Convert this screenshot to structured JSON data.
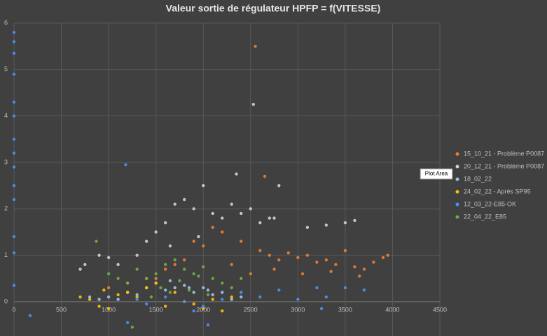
{
  "chart_data": {
    "type": "scatter",
    "title": "Valeur sortie de régulateur HPFP = f(VITESSE)",
    "tooltip": "Plot Area",
    "xlim": [
      0,
      4500
    ],
    "xticks": [
      0,
      500,
      1000,
      1500,
      2000,
      2500,
      3000,
      3500,
      4000,
      4500
    ],
    "ylim": [
      -0.7,
      6
    ],
    "yticks": [
      0,
      1,
      2,
      3,
      4,
      5,
      6
    ],
    "grid": true,
    "legend": "right",
    "series": [
      {
        "name": "15_10_21 - Problème P0087",
        "color": "#ed7d31",
        "x": [
          2550,
          2650,
          2400,
          2600,
          2700,
          2800,
          2900,
          3000,
          3100,
          3200,
          3300,
          3400,
          3500,
          3600,
          3700,
          3800,
          3900,
          3950,
          2200,
          2000,
          1800,
          1600,
          1400,
          1200,
          1000,
          2500,
          2750,
          3050,
          3350,
          3650,
          2300,
          2100,
          1900,
          1700,
          1500
        ],
        "values": [
          5.5,
          2.7,
          1.3,
          1.1,
          1.0,
          0.9,
          1.05,
          0.95,
          1.0,
          0.85,
          0.9,
          0.8,
          1.1,
          0.75,
          0.7,
          0.85,
          0.95,
          1.0,
          1.5,
          1.2,
          0.9,
          0.7,
          0.5,
          0.4,
          0.3,
          0.6,
          0.7,
          0.6,
          0.65,
          0.55,
          0.8,
          1.6,
          1.3,
          0.8,
          0.5
        ]
      },
      {
        "name": "20_12_21 - Problème P0087",
        "color": "#d0d0d0",
        "x": [
          2530,
          2350,
          2000,
          1700,
          1800,
          1900,
          2100,
          2200,
          2300,
          2400,
          2500,
          2600,
          2700,
          2800,
          1500,
          1600,
          1400,
          1300,
          1100,
          1000,
          900,
          700,
          750,
          2750,
          3100,
          3300,
          3500,
          3600,
          1650,
          1950
        ],
        "values": [
          4.25,
          2.75,
          2.5,
          2.1,
          2.2,
          2.0,
          1.9,
          1.8,
          2.1,
          1.9,
          2.0,
          1.7,
          1.8,
          2.5,
          1.5,
          1.7,
          1.3,
          1.0,
          0.8,
          0.95,
          1.0,
          0.7,
          0.8,
          1.8,
          1.6,
          1.65,
          1.7,
          1.75,
          1.2,
          1.4
        ]
      },
      {
        "name": "18_02_22",
        "color": "#9dc3e6",
        "x": [
          1000,
          1200,
          1400,
          1600,
          1800,
          2000,
          2200,
          2400,
          1100,
          1300,
          1500,
          1700,
          1900,
          2100,
          2300,
          900,
          800,
          1650,
          1850,
          2050
        ],
        "values": [
          0.1,
          0.2,
          0.3,
          0.25,
          0.35,
          0.3,
          0.2,
          0.1,
          0.05,
          0.15,
          0.4,
          0.3,
          0.2,
          0.15,
          0.05,
          0.05,
          0.1,
          0.45,
          0.3,
          0.25
        ]
      },
      {
        "name": "24_02_22 - Après SP95",
        "color": "#ffc000",
        "x": [
          700,
          800,
          900,
          1000,
          1200,
          1400,
          1600,
          1800,
          2000,
          2200,
          2300,
          1500,
          1700,
          1900,
          1100,
          1300,
          950,
          2100
        ],
        "values": [
          0.1,
          0.05,
          -0.1,
          -0.15,
          0.2,
          0.3,
          -0.1,
          0.0,
          -0.15,
          -0.2,
          0.1,
          0.4,
          0.2,
          -0.05,
          0.15,
          0.1,
          0.25,
          0.05
        ]
      },
      {
        "name": "12_03_22-E85-OK",
        "color": "#4f8ff0",
        "x": [
          0,
          0,
          0,
          0,
          0,
          0,
          0,
          0,
          0,
          0,
          0,
          0,
          0,
          0,
          1180,
          170,
          1300,
          1400,
          1600,
          1800,
          2000,
          2200,
          2400,
          2600,
          2800,
          3000,
          3200,
          3300,
          3500,
          3700,
          3250,
          2050,
          1200,
          1900
        ],
        "values": [
          5.8,
          5.6,
          5.35,
          4.9,
          4.3,
          4.0,
          3.5,
          3.2,
          2.9,
          2.5,
          2.2,
          1.4,
          1.05,
          0.35,
          2.95,
          -0.3,
          0.05,
          -0.05,
          0.1,
          0.0,
          -0.1,
          0.05,
          0.2,
          0.1,
          0.25,
          0.05,
          0.3,
          0.1,
          0.3,
          0.25,
          -0.15,
          -0.5,
          -0.45,
          -0.2
        ]
      },
      {
        "name": "22_04_22_E85",
        "color": "#70ad47",
        "x": [
          870,
          1000,
          1100,
          1200,
          1300,
          1400,
          1500,
          1600,
          1700,
          1800,
          1900,
          2000,
          2100,
          2200,
          2300,
          1550,
          1750,
          1950,
          1650,
          1850,
          1250,
          1450,
          2050,
          2400
        ],
        "values": [
          1.3,
          0.6,
          0.5,
          0.4,
          0.7,
          0.5,
          0.6,
          0.8,
          0.9,
          0.7,
          0.6,
          0.75,
          0.5,
          0.4,
          0.3,
          0.3,
          0.45,
          0.55,
          0.2,
          0.25,
          -0.55,
          0.1,
          0.15,
          0.5
        ]
      }
    ]
  }
}
